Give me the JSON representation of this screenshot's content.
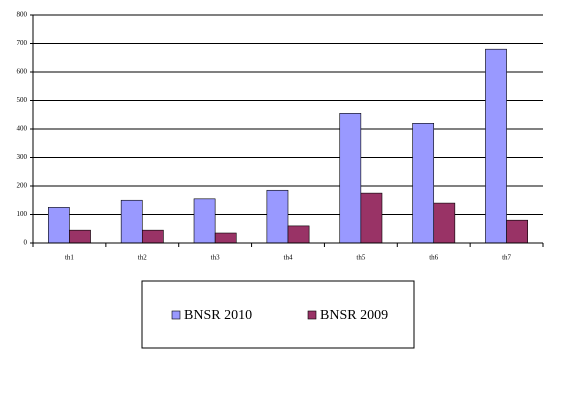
{
  "chart_data": {
    "type": "bar",
    "categories": [
      "th1",
      "th2",
      "th3",
      "th4",
      "th5",
      "th6",
      "th7"
    ],
    "series": [
      {
        "name": "BNSR 2010",
        "color": "#9999ff",
        "values": [
          125,
          150,
          155,
          185,
          455,
          420,
          680
        ]
      },
      {
        "name": "BNSR 2009",
        "color": "#993366",
        "values": [
          45,
          45,
          35,
          60,
          175,
          140,
          80
        ]
      }
    ],
    "ylim": [
      0,
      800
    ],
    "yticks": [
      0,
      100,
      200,
      300,
      400,
      500,
      600,
      700,
      800
    ],
    "grid": true,
    "legend": "bottom"
  }
}
